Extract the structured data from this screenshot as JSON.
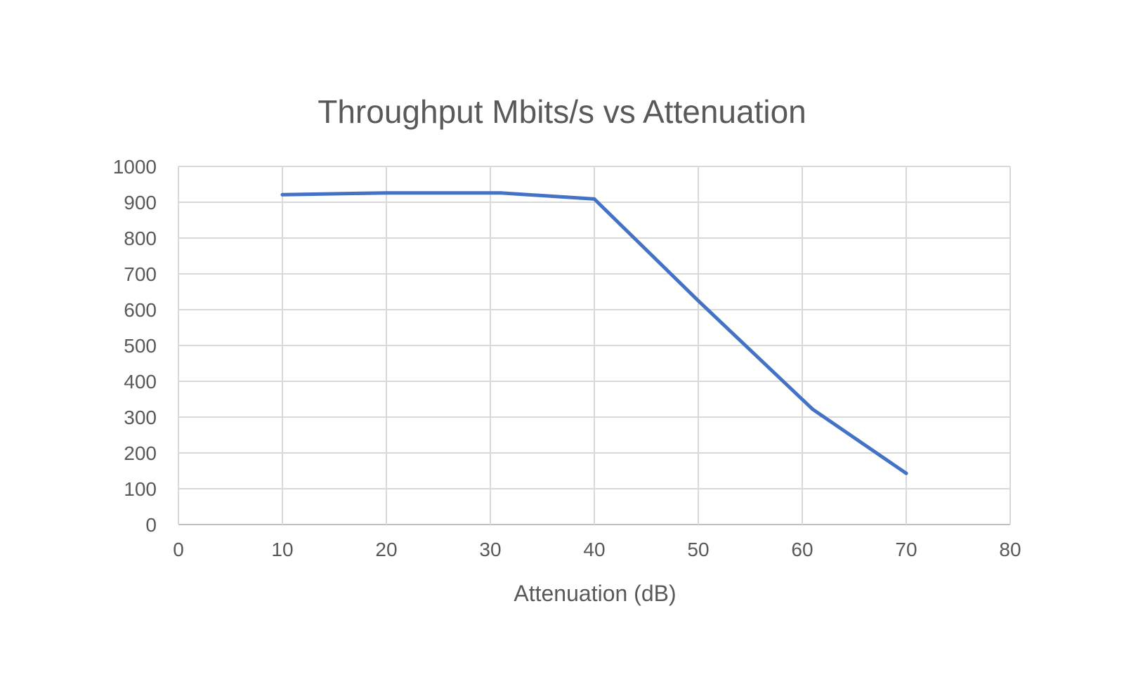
{
  "chart_data": {
    "type": "line",
    "title": "Throughput Mbits/s vs Attenuation",
    "xlabel": "Attenuation (dB)",
    "ylabel": "",
    "xlim": [
      0,
      80
    ],
    "ylim": [
      0,
      1000
    ],
    "x_ticks": [
      0,
      10,
      20,
      30,
      40,
      50,
      60,
      70,
      80
    ],
    "y_ticks": [
      0,
      100,
      200,
      300,
      400,
      500,
      600,
      700,
      800,
      900,
      1000
    ],
    "grid": true,
    "legend": "none",
    "series": [
      {
        "color": "#4472C4",
        "x": [
          10,
          20,
          31,
          40,
          50,
          61,
          70
        ],
        "y": [
          921,
          926,
          926,
          909,
          625,
          322,
          143
        ]
      }
    ]
  }
}
